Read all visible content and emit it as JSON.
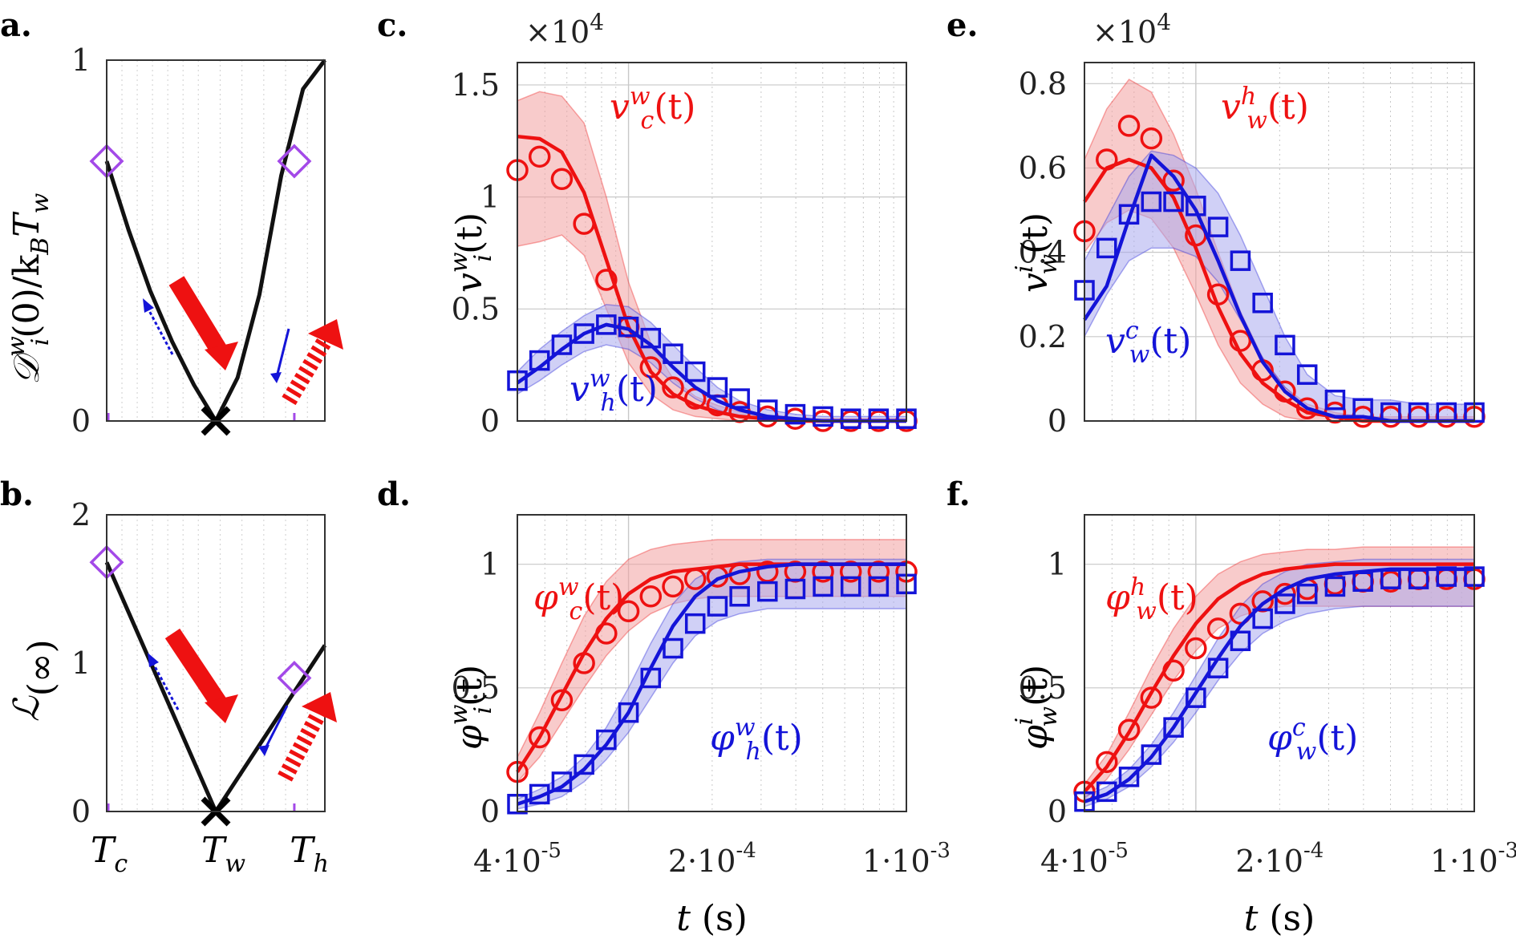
{
  "panel_labels": [
    "a.",
    "b.",
    "c.",
    "d.",
    "e.",
    "f."
  ],
  "colors": {
    "red": "#ee1111",
    "blue": "#1414d8",
    "purple": "#a349e8",
    "black": "#000000",
    "band_red": "#f2a0a0",
    "band_blue": "#a9a9ee"
  },
  "chart_data": [
    {
      "id": "a",
      "type": "line",
      "panel_label": "a.",
      "ylabel": "D_i^w(0)/k_B T_w",
      "y_ticks": [
        "0",
        "1"
      ],
      "ylim": [
        0,
        1
      ],
      "x_ticks": [
        "T_c",
        "T_w",
        "T_h"
      ],
      "curve": {
        "x": [
          0.0,
          0.1,
          0.2,
          0.3,
          0.4,
          0.5,
          0.6,
          0.7,
          0.8,
          0.9,
          1.0
        ],
        "y": [
          0.72,
          0.53,
          0.36,
          0.22,
          0.1,
          0.0,
          0.12,
          0.35,
          0.68,
          0.92,
          1.0
        ]
      },
      "markers": [
        {
          "x": 0.0,
          "y": 0.72,
          "shape": "diamond"
        },
        {
          "x": 0.86,
          "y": 0.72,
          "shape": "diamond"
        }
      ],
      "minimum": {
        "x": 0.5,
        "y": 0.0,
        "shape": "x"
      }
    },
    {
      "id": "b",
      "type": "line",
      "panel_label": "b.",
      "ylabel": "L(inf)",
      "y_ticks": [
        "0",
        "1",
        "2"
      ],
      "ylim": [
        0,
        2
      ],
      "x_ticks": [
        "T_c",
        "T_w",
        "T_h"
      ],
      "curve": {
        "x": [
          0.0,
          0.5,
          1.0
        ],
        "y": [
          1.68,
          0.0,
          1.12
        ]
      },
      "markers": [
        {
          "x": 0.0,
          "y": 1.68,
          "shape": "diamond"
        },
        {
          "x": 0.86,
          "y": 0.9,
          "shape": "diamond"
        }
      ],
      "minimum": {
        "x": 0.5,
        "y": 0.0,
        "shape": "x"
      }
    },
    {
      "id": "c",
      "type": "scatter",
      "panel_label": "c.",
      "exponent": "×10",
      "exponent_power": "4",
      "ylabel": "v_i^w(t)",
      "y_ticks": [
        "0",
        "0.5",
        "1",
        "1.5"
      ],
      "ylim": [
        0,
        1.6
      ],
      "xlabel": "t (s)",
      "xlim_log": [
        -4.4,
        -3.0
      ],
      "x_ticks": [
        "4·10",
        "-5",
        "2·10",
        "-4",
        "1·10",
        "-3"
      ],
      "series": [
        {
          "name": "v_c^w(t)",
          "color": "red",
          "marker": "circle",
          "t_log": [
            -4.4,
            -4.32,
            -4.24,
            -4.16,
            -4.08,
            -4.0,
            -3.92,
            -3.84,
            -3.76,
            -3.68,
            -3.6,
            -3.5,
            -3.4,
            -3.3,
            -3.2,
            -3.1,
            -3.0
          ],
          "values": [
            1.12,
            1.18,
            1.08,
            0.88,
            0.63,
            0.42,
            0.24,
            0.15,
            0.1,
            0.07,
            0.04,
            0.02,
            0.01,
            0.0,
            0.0,
            0.0,
            0.0
          ],
          "fit": [
            1.27,
            1.26,
            1.2,
            1.02,
            0.72,
            0.42,
            0.22,
            0.12,
            0.07,
            0.04,
            0.02,
            0.01,
            0.0,
            0.0,
            0.0,
            0.0,
            0.0
          ],
          "band_hi": [
            1.43,
            1.47,
            1.45,
            1.33,
            1.0,
            0.62,
            0.35,
            0.19,
            0.11,
            0.07,
            0.04,
            0.02,
            0.01,
            0.01,
            0.01,
            0.01,
            0.01
          ],
          "band_lo": [
            0.78,
            0.8,
            0.83,
            0.74,
            0.5,
            0.26,
            0.12,
            0.05,
            0.02,
            0.01,
            0.0,
            0.0,
            0.0,
            0.0,
            0.0,
            0.0,
            0.0
          ]
        },
        {
          "name": "v_h^w(t)",
          "color": "blue",
          "marker": "square",
          "t_log": [
            -4.4,
            -4.32,
            -4.24,
            -4.16,
            -4.08,
            -4.0,
            -3.92,
            -3.84,
            -3.76,
            -3.68,
            -3.6,
            -3.5,
            -3.4,
            -3.3,
            -3.2,
            -3.1,
            -3.0
          ],
          "values": [
            0.18,
            0.27,
            0.34,
            0.39,
            0.43,
            0.42,
            0.37,
            0.3,
            0.22,
            0.15,
            0.1,
            0.05,
            0.03,
            0.02,
            0.01,
            0.01,
            0.01
          ],
          "fit": [
            0.17,
            0.24,
            0.32,
            0.39,
            0.43,
            0.41,
            0.34,
            0.24,
            0.15,
            0.09,
            0.05,
            0.02,
            0.01,
            0.0,
            0.0,
            0.0,
            0.0
          ],
          "band_hi": [
            0.22,
            0.32,
            0.4,
            0.47,
            0.52,
            0.51,
            0.44,
            0.34,
            0.24,
            0.15,
            0.09,
            0.05,
            0.03,
            0.02,
            0.02,
            0.02,
            0.02
          ],
          "band_lo": [
            0.12,
            0.18,
            0.25,
            0.31,
            0.34,
            0.32,
            0.26,
            0.17,
            0.1,
            0.05,
            0.02,
            0.01,
            0.0,
            0.0,
            0.0,
            0.0,
            0.0
          ]
        }
      ]
    },
    {
      "id": "d",
      "type": "scatter",
      "panel_label": "d.",
      "ylabel": "phi_i^w(t)",
      "y_ticks": [
        "0",
        "0.5",
        "1"
      ],
      "ylim": [
        0,
        1.2
      ],
      "xlabel": "t (s)",
      "xlim_log": [
        -4.4,
        -3.0
      ],
      "x_ticks": [
        "4·10",
        "-5",
        "2·10",
        "-4",
        "1·10",
        "-3"
      ],
      "series": [
        {
          "name": "phi_c^w(t)",
          "color": "red",
          "marker": "circle",
          "t_log": [
            -4.4,
            -4.32,
            -4.24,
            -4.16,
            -4.08,
            -4.0,
            -3.92,
            -3.84,
            -3.76,
            -3.68,
            -3.6,
            -3.5,
            -3.4,
            -3.3,
            -3.2,
            -3.1,
            -3.0
          ],
          "values": [
            0.16,
            0.3,
            0.45,
            0.6,
            0.72,
            0.81,
            0.87,
            0.91,
            0.94,
            0.95,
            0.96,
            0.97,
            0.97,
            0.97,
            0.97,
            0.97,
            0.97
          ],
          "fit": [
            0.16,
            0.3,
            0.47,
            0.64,
            0.78,
            0.88,
            0.94,
            0.97,
            0.98,
            0.99,
            1.0,
            1.0,
            1.0,
            1.0,
            1.0,
            1.0,
            1.0
          ],
          "band_hi": [
            0.22,
            0.4,
            0.6,
            0.79,
            0.93,
            1.02,
            1.06,
            1.08,
            1.09,
            1.1,
            1.1,
            1.1,
            1.1,
            1.1,
            1.1,
            1.1,
            1.1
          ],
          "band_lo": [
            0.12,
            0.22,
            0.36,
            0.5,
            0.63,
            0.73,
            0.8,
            0.84,
            0.86,
            0.87,
            0.87,
            0.87,
            0.87,
            0.87,
            0.87,
            0.87,
            0.87
          ]
        },
        {
          "name": "phi_h^w(t)",
          "color": "blue",
          "marker": "square",
          "t_log": [
            -4.4,
            -4.32,
            -4.24,
            -4.16,
            -4.08,
            -4.0,
            -3.92,
            -3.84,
            -3.76,
            -3.68,
            -3.6,
            -3.5,
            -3.4,
            -3.3,
            -3.2,
            -3.1,
            -3.0
          ],
          "values": [
            0.03,
            0.07,
            0.12,
            0.19,
            0.29,
            0.4,
            0.54,
            0.66,
            0.76,
            0.83,
            0.87,
            0.89,
            0.9,
            0.91,
            0.91,
            0.91,
            0.92
          ],
          "fit": [
            0.03,
            0.06,
            0.1,
            0.17,
            0.27,
            0.4,
            0.58,
            0.75,
            0.87,
            0.94,
            0.97,
            0.99,
            1.0,
            1.0,
            1.0,
            1.0,
            1.0
          ],
          "band_hi": [
            0.05,
            0.09,
            0.14,
            0.22,
            0.34,
            0.5,
            0.68,
            0.84,
            0.94,
            0.99,
            1.01,
            1.02,
            1.02,
            1.02,
            1.02,
            1.02,
            1.02
          ],
          "band_lo": [
            0.01,
            0.03,
            0.06,
            0.12,
            0.21,
            0.32,
            0.46,
            0.6,
            0.71,
            0.77,
            0.8,
            0.82,
            0.82,
            0.82,
            0.82,
            0.82,
            0.82
          ]
        }
      ]
    },
    {
      "id": "e",
      "type": "scatter",
      "panel_label": "e.",
      "exponent": "×10",
      "exponent_power": "4",
      "ylabel": "v_w^i(t)",
      "y_ticks": [
        "0",
        "0.2",
        "0.4",
        "0.6",
        "0.8"
      ],
      "ylim": [
        0,
        0.85
      ],
      "xlabel": "t (s)",
      "xlim_log": [
        -4.4,
        -3.0
      ],
      "x_ticks": [
        "4·10",
        "-5",
        "2·10",
        "-4",
        "1·10",
        "-3"
      ],
      "series": [
        {
          "name": "v_w^h(t)",
          "color": "red",
          "marker": "circle",
          "t_log": [
            -4.4,
            -4.32,
            -4.24,
            -4.16,
            -4.08,
            -4.0,
            -3.92,
            -3.84,
            -3.76,
            -3.68,
            -3.6,
            -3.5,
            -3.4,
            -3.3,
            -3.2,
            -3.1,
            -3.0
          ],
          "values": [
            0.45,
            0.62,
            0.7,
            0.67,
            0.57,
            0.44,
            0.3,
            0.19,
            0.12,
            0.07,
            0.03,
            0.02,
            0.01,
            0.01,
            0.01,
            0.01,
            0.01
          ],
          "fit": [
            0.52,
            0.6,
            0.62,
            0.6,
            0.53,
            0.41,
            0.27,
            0.16,
            0.09,
            0.05,
            0.02,
            0.01,
            0.0,
            0.0,
            0.0,
            0.0,
            0.0
          ],
          "band_hi": [
            0.62,
            0.74,
            0.81,
            0.78,
            0.68,
            0.55,
            0.4,
            0.26,
            0.15,
            0.08,
            0.04,
            0.02,
            0.01,
            0.01,
            0.01,
            0.01,
            0.01
          ],
          "band_lo": [
            0.4,
            0.47,
            0.5,
            0.48,
            0.41,
            0.3,
            0.18,
            0.09,
            0.04,
            0.01,
            0.0,
            0.0,
            0.0,
            0.0,
            0.0,
            0.0,
            0.0
          ]
        },
        {
          "name": "v_w^c(t)",
          "color": "blue",
          "marker": "square",
          "t_log": [
            -4.4,
            -4.32,
            -4.24,
            -4.16,
            -4.08,
            -4.0,
            -3.92,
            -3.84,
            -3.76,
            -3.68,
            -3.6,
            -3.5,
            -3.4,
            -3.3,
            -3.2,
            -3.1,
            -3.0
          ],
          "values": [
            0.31,
            0.41,
            0.49,
            0.52,
            0.52,
            0.51,
            0.46,
            0.38,
            0.28,
            0.18,
            0.11,
            0.05,
            0.03,
            0.02,
            0.02,
            0.02,
            0.02
          ],
          "fit": [
            0.24,
            0.32,
            0.48,
            0.63,
            0.58,
            0.5,
            0.38,
            0.25,
            0.14,
            0.07,
            0.03,
            0.01,
            0.01,
            0.0,
            0.0,
            0.0,
            0.0
          ],
          "band_hi": [
            0.38,
            0.48,
            0.58,
            0.64,
            0.63,
            0.6,
            0.54,
            0.44,
            0.32,
            0.2,
            0.11,
            0.06,
            0.05,
            0.05,
            0.04,
            0.04,
            0.04
          ],
          "band_lo": [
            0.2,
            0.3,
            0.38,
            0.41,
            0.41,
            0.39,
            0.33,
            0.24,
            0.15,
            0.08,
            0.03,
            0.01,
            0.0,
            0.0,
            0.0,
            0.0,
            0.0
          ]
        }
      ]
    },
    {
      "id": "f",
      "type": "scatter",
      "panel_label": "f.",
      "ylabel": "phi_w^i(t)",
      "y_ticks": [
        "0",
        "0.5",
        "1"
      ],
      "ylim": [
        0,
        1.2
      ],
      "xlabel": "t (s)",
      "xlim_log": [
        -4.4,
        -3.0
      ],
      "x_ticks": [
        "4·10",
        "-5",
        "2·10",
        "-4",
        "1·10",
        "-3"
      ],
      "series": [
        {
          "name": "phi_w^h(t)",
          "color": "red",
          "marker": "circle",
          "t_log": [
            -4.4,
            -4.32,
            -4.24,
            -4.16,
            -4.08,
            -4.0,
            -3.92,
            -3.84,
            -3.76,
            -3.68,
            -3.6,
            -3.5,
            -3.4,
            -3.3,
            -3.2,
            -3.1,
            -3.0
          ],
          "values": [
            0.08,
            0.2,
            0.33,
            0.46,
            0.57,
            0.66,
            0.74,
            0.8,
            0.85,
            0.88,
            0.9,
            0.92,
            0.93,
            0.93,
            0.94,
            0.94,
            0.94
          ],
          "fit": [
            0.08,
            0.18,
            0.32,
            0.48,
            0.63,
            0.76,
            0.86,
            0.92,
            0.96,
            0.98,
            0.99,
            1.0,
            1.0,
            1.0,
            1.0,
            1.0,
            1.0
          ],
          "band_hi": [
            0.11,
            0.23,
            0.4,
            0.58,
            0.74,
            0.87,
            0.96,
            1.01,
            1.04,
            1.05,
            1.06,
            1.06,
            1.07,
            1.07,
            1.07,
            1.07,
            1.07
          ],
          "band_lo": [
            0.05,
            0.13,
            0.25,
            0.39,
            0.53,
            0.65,
            0.74,
            0.79,
            0.82,
            0.83,
            0.83,
            0.83,
            0.83,
            0.83,
            0.83,
            0.83,
            0.83
          ]
        },
        {
          "name": "phi_w^c(t)",
          "color": "blue",
          "marker": "square",
          "t_log": [
            -4.4,
            -4.32,
            -4.24,
            -4.16,
            -4.08,
            -4.0,
            -3.92,
            -3.84,
            -3.76,
            -3.68,
            -3.6,
            -3.5,
            -3.4,
            -3.3,
            -3.2,
            -3.1,
            -3.0
          ],
          "values": [
            0.04,
            0.08,
            0.14,
            0.23,
            0.34,
            0.46,
            0.58,
            0.69,
            0.78,
            0.84,
            0.88,
            0.91,
            0.93,
            0.94,
            0.94,
            0.95,
            0.95
          ],
          "fit": [
            0.04,
            0.07,
            0.13,
            0.22,
            0.34,
            0.48,
            0.62,
            0.75,
            0.84,
            0.9,
            0.94,
            0.96,
            0.97,
            0.98,
            0.98,
            0.98,
            0.98
          ],
          "band_hi": [
            0.06,
            0.1,
            0.17,
            0.27,
            0.4,
            0.55,
            0.7,
            0.83,
            0.92,
            0.97,
            1.0,
            1.01,
            1.02,
            1.02,
            1.02,
            1.02,
            1.02
          ],
          "band_lo": [
            0.02,
            0.05,
            0.1,
            0.18,
            0.28,
            0.4,
            0.53,
            0.64,
            0.72,
            0.77,
            0.8,
            0.82,
            0.83,
            0.83,
            0.83,
            0.83,
            0.83
          ]
        }
      ]
    }
  ]
}
